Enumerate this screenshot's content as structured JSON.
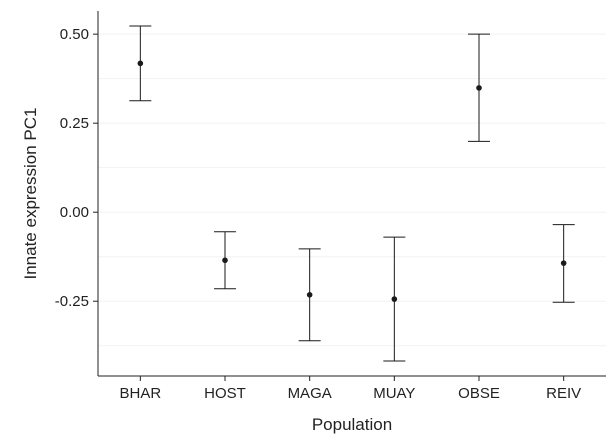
{
  "chart_data": {
    "type": "scatter",
    "subtype": "point-with-error-bars",
    "title": "",
    "xlabel": "Population",
    "ylabel": "Innate expression PC1",
    "categories": [
      "BHAR",
      "HOST",
      "MAGA",
      "MUAY",
      "OBSE",
      "REIV"
    ],
    "series": [
      {
        "mean": [
          0.418,
          -0.135,
          -0.232,
          -0.244,
          0.349,
          -0.143
        ],
        "lower": [
          0.313,
          -0.215,
          -0.361,
          -0.418,
          0.199,
          -0.253
        ],
        "upper": [
          0.523,
          -0.055,
          -0.103,
          -0.07,
          0.5,
          -0.035
        ]
      }
    ],
    "ylim": [
      -0.46,
      0.565
    ],
    "y_ticks": [
      -0.25,
      0.0,
      0.25,
      0.5
    ],
    "y_tick_labels": [
      "-0.25",
      "0.00",
      "0.25",
      "0.50"
    ],
    "grid": "faint horizontal gridlines",
    "legend": "none",
    "colors": {
      "marks": "#1a1a1a",
      "axis": "#222222",
      "grid": "#f2f2f2"
    }
  }
}
